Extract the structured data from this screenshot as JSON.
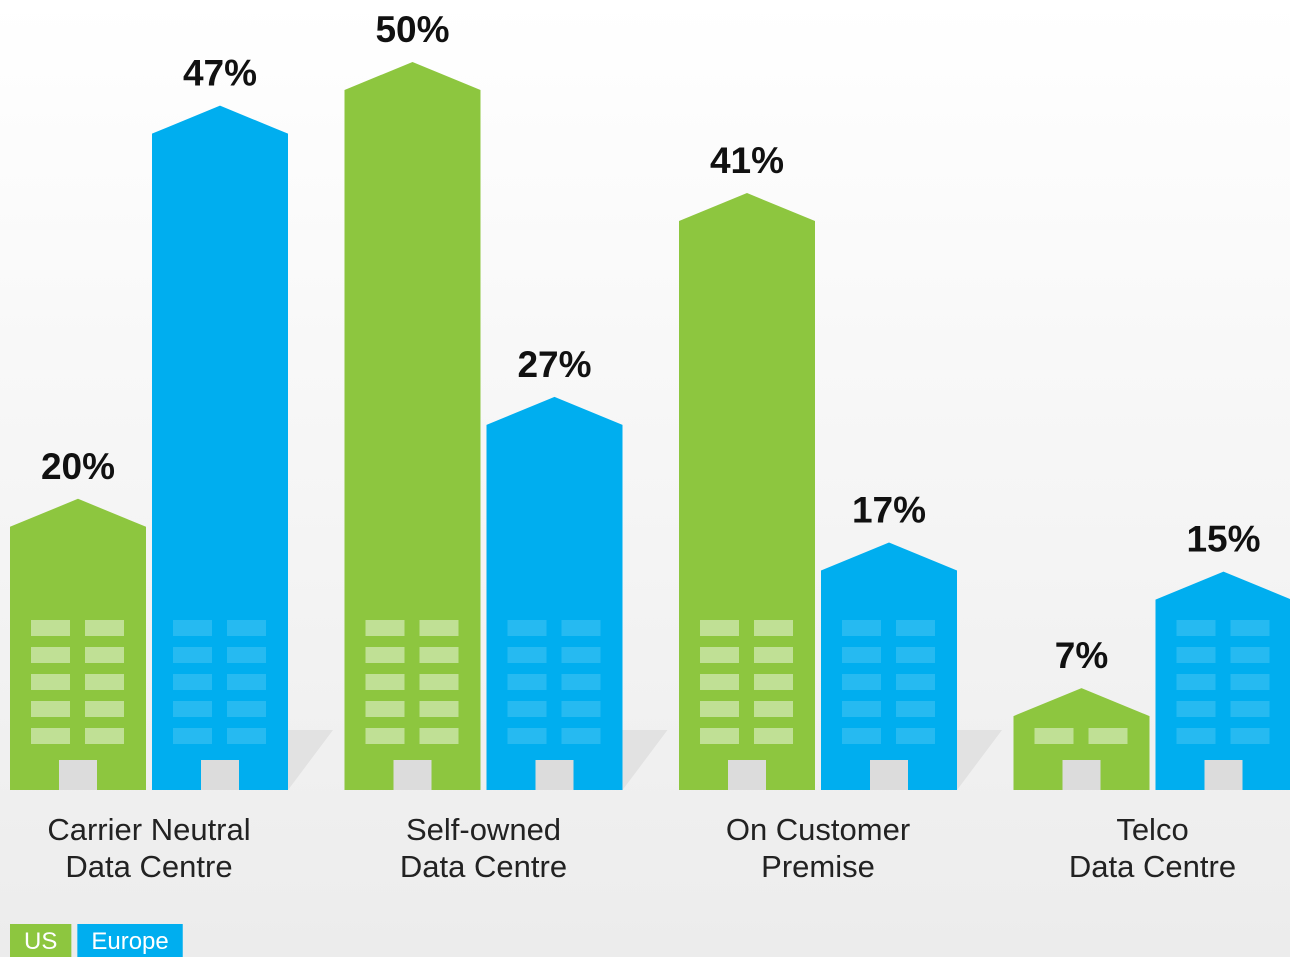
{
  "chart_data": {
    "type": "bar",
    "categories": [
      [
        "Carrier Neutral",
        "Data Centre"
      ],
      [
        "Self-owned",
        "Data Centre"
      ],
      [
        "On Customer",
        "Premise"
      ],
      [
        "Telco",
        "Data Centre"
      ]
    ],
    "series": [
      {
        "name": "US",
        "color": "#8dc63f",
        "values": [
          20,
          50,
          41,
          7
        ],
        "value_labels": [
          "20%",
          "50%",
          "41%",
          "7%"
        ]
      },
      {
        "name": "Europe",
        "color": "#00aeef",
        "values": [
          47,
          27,
          17,
          15
        ],
        "value_labels": [
          "47%",
          "27%",
          "17%",
          "15%"
        ]
      }
    ]
  }
}
